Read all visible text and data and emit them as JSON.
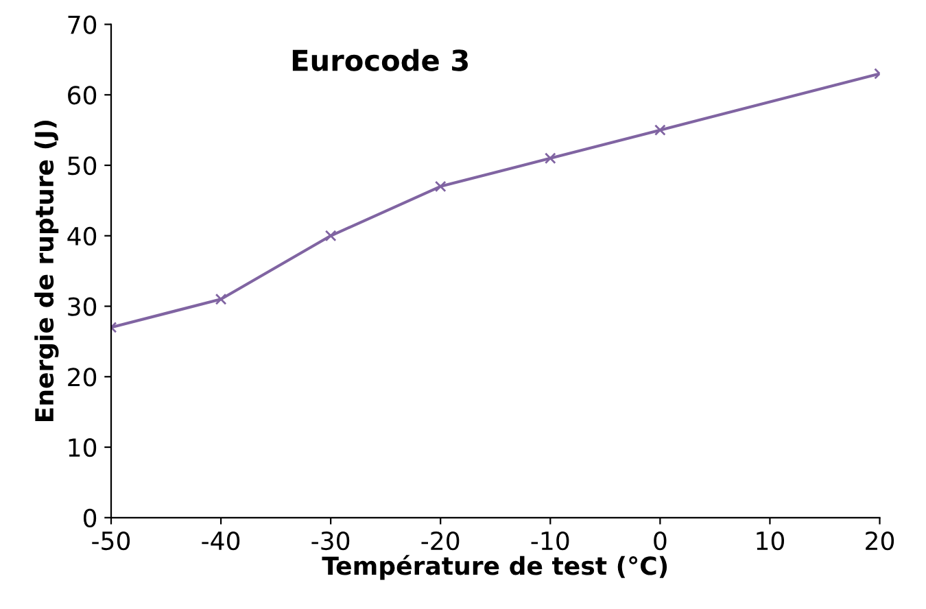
{
  "chart_data": {
    "type": "line",
    "title": "Eurocode 3",
    "xlabel": "Température de test (°C)",
    "ylabel": "Energie de rupture (J)",
    "x": [
      -50,
      -40,
      -30,
      -20,
      -10,
      0,
      20
    ],
    "series": [
      {
        "color": "#8064a2",
        "values": [
          27,
          31,
          40,
          47,
          51,
          55,
          63
        ]
      }
    ],
    "xlim": [
      -50,
      20
    ],
    "xticks": [
      -50,
      -40,
      -30,
      -20,
      -10,
      0,
      10,
      20
    ],
    "ylim": [
      0,
      70
    ],
    "yticks": [
      0,
      10,
      20,
      30,
      40,
      50,
      60,
      70
    ],
    "marker": "cross",
    "line_style": "solid",
    "grid": false
  }
}
